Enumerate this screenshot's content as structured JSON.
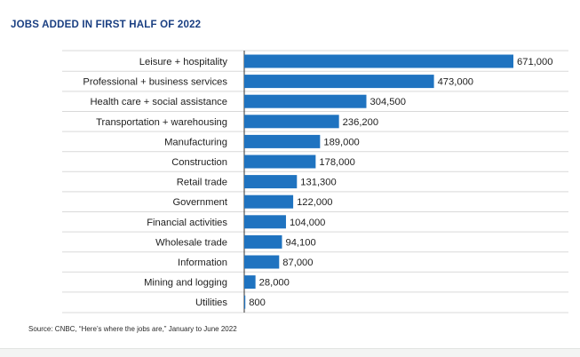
{
  "colors": {
    "bar": "#1f73c0",
    "title": "#1a3f82",
    "grid": "#d9d9d9",
    "axis": "#333333",
    "text": "#1e1e1e"
  },
  "chart_data": {
    "type": "bar",
    "orientation": "horizontal",
    "title": "JOBS ADDED IN FIRST HALF OF 2022",
    "categories": [
      "Leisure + hospitality",
      "Professional + business services",
      "Health care + social assistance",
      "Transportation + warehousing",
      "Manufacturing",
      "Construction",
      "Retail trade",
      "Government",
      "Financial activities",
      "Wholesale trade",
      "Information",
      "Mining and logging",
      "Utilities"
    ],
    "values": [
      671000,
      473000,
      304500,
      236200,
      189000,
      178000,
      131300,
      122000,
      104000,
      94100,
      87000,
      28000,
      800
    ],
    "data_labels": [
      "671,000",
      "473,000",
      "304,500",
      "236,200",
      "189,000",
      "178,000",
      "131,300",
      "122,000",
      "104,000",
      "94,100",
      "87,000",
      "28,000",
      "800"
    ],
    "xlim": [
      0,
      671000
    ],
    "grid": true,
    "source": "Source: CNBC, “Here’s where the jobs are,” January to June 2022"
  }
}
